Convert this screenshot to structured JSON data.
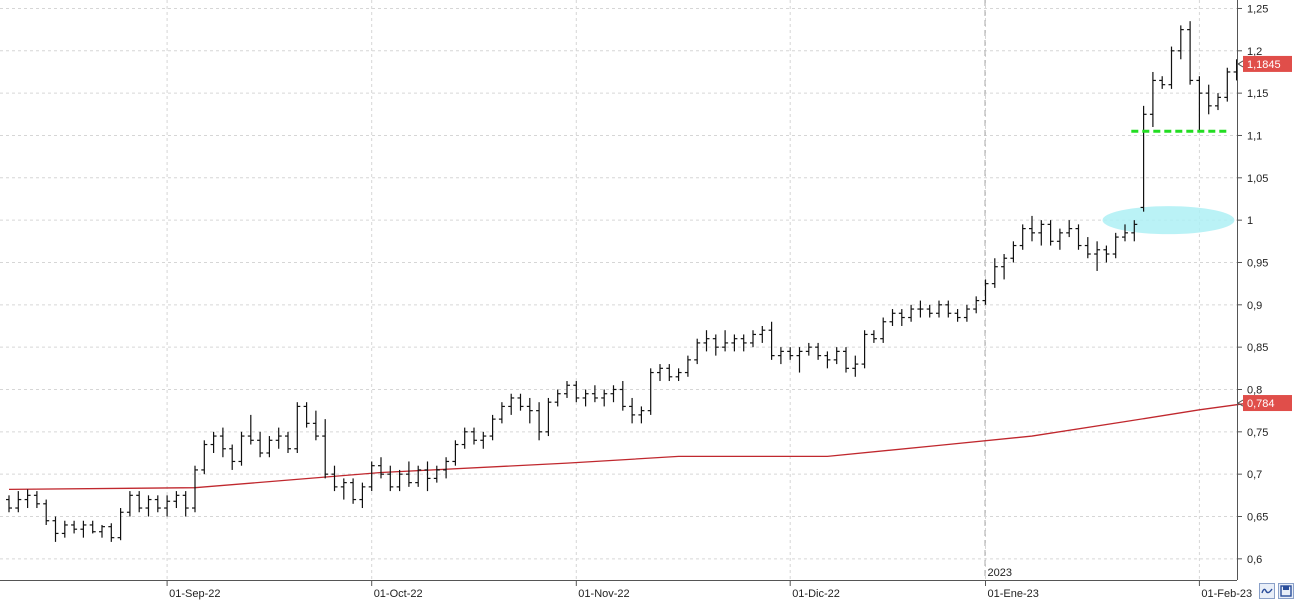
{
  "chart_data": {
    "type": "ohlc",
    "y_axis": {
      "side": "right",
      "min": 0.575,
      "max": 1.26,
      "ticks": [
        {
          "value": 0.6,
          "label": "0,6"
        },
        {
          "value": 0.65,
          "label": "0,65"
        },
        {
          "value": 0.7,
          "label": "0,7"
        },
        {
          "value": 0.75,
          "label": "0,75"
        },
        {
          "value": 0.8,
          "label": "0,8"
        },
        {
          "value": 0.85,
          "label": "0,85"
        },
        {
          "value": 0.9,
          "label": "0,9"
        },
        {
          "value": 0.95,
          "label": "0,95"
        },
        {
          "value": 1.0,
          "label": "1"
        },
        {
          "value": 1.05,
          "label": "1,05"
        },
        {
          "value": 1.1,
          "label": "1,1"
        },
        {
          "value": 1.15,
          "label": "1,15"
        },
        {
          "value": 1.2,
          "label": "1,2"
        },
        {
          "value": 1.25,
          "label": "1,25"
        }
      ]
    },
    "x_axis": {
      "ticks": [
        {
          "bar": 17,
          "label": "01-Sep-22"
        },
        {
          "bar": 39,
          "label": "01-Oct-22"
        },
        {
          "bar": 61,
          "label": "01-Nov-22"
        },
        {
          "bar": 84,
          "label": "01-Dic-22"
        },
        {
          "bar": 105,
          "label": "01-Ene-23"
        },
        {
          "bar": 128,
          "label": "01-Feb-23"
        }
      ],
      "year_marker": {
        "bar": 105,
        "label": "2023"
      }
    },
    "grid": true,
    "ohlc_bars": [
      [
        0.67,
        0.675,
        0.655,
        0.66
      ],
      [
        0.66,
        0.68,
        0.655,
        0.67
      ],
      [
        0.67,
        0.682,
        0.66,
        0.675
      ],
      [
        0.675,
        0.68,
        0.66,
        0.665
      ],
      [
        0.665,
        0.67,
        0.64,
        0.645
      ],
      [
        0.645,
        0.65,
        0.62,
        0.63
      ],
      [
        0.63,
        0.645,
        0.625,
        0.64
      ],
      [
        0.64,
        0.645,
        0.63,
        0.635
      ],
      [
        0.635,
        0.645,
        0.625,
        0.64
      ],
      [
        0.64,
        0.645,
        0.63,
        0.632
      ],
      [
        0.632,
        0.64,
        0.625,
        0.638
      ],
      [
        0.638,
        0.642,
        0.62,
        0.625
      ],
      [
        0.625,
        0.66,
        0.622,
        0.655
      ],
      [
        0.655,
        0.68,
        0.65,
        0.675
      ],
      [
        0.675,
        0.68,
        0.655,
        0.66
      ],
      [
        0.66,
        0.675,
        0.65,
        0.67
      ],
      [
        0.67,
        0.675,
        0.655,
        0.66
      ],
      [
        0.66,
        0.675,
        0.65,
        0.668
      ],
      [
        0.668,
        0.68,
        0.66,
        0.675
      ],
      [
        0.675,
        0.68,
        0.65,
        0.66
      ],
      [
        0.66,
        0.71,
        0.655,
        0.705
      ],
      [
        0.705,
        0.74,
        0.7,
        0.735
      ],
      [
        0.735,
        0.75,
        0.725,
        0.745
      ],
      [
        0.745,
        0.755,
        0.72,
        0.73
      ],
      [
        0.73,
        0.735,
        0.705,
        0.715
      ],
      [
        0.715,
        0.75,
        0.71,
        0.745
      ],
      [
        0.745,
        0.77,
        0.735,
        0.74
      ],
      [
        0.74,
        0.75,
        0.72,
        0.725
      ],
      [
        0.725,
        0.745,
        0.72,
        0.74
      ],
      [
        0.74,
        0.755,
        0.73,
        0.745
      ],
      [
        0.745,
        0.75,
        0.725,
        0.73
      ],
      [
        0.73,
        0.785,
        0.725,
        0.78
      ],
      [
        0.78,
        0.785,
        0.755,
        0.76
      ],
      [
        0.76,
        0.775,
        0.74,
        0.745
      ],
      [
        0.745,
        0.765,
        0.695,
        0.7
      ],
      [
        0.7,
        0.71,
        0.68,
        0.685
      ],
      [
        0.685,
        0.695,
        0.67,
        0.69
      ],
      [
        0.69,
        0.695,
        0.665,
        0.67
      ],
      [
        0.67,
        0.69,
        0.66,
        0.685
      ],
      [
        0.685,
        0.715,
        0.68,
        0.71
      ],
      [
        0.71,
        0.72,
        0.695,
        0.7
      ],
      [
        0.7,
        0.71,
        0.68,
        0.685
      ],
      [
        0.685,
        0.705,
        0.68,
        0.7
      ],
      [
        0.7,
        0.715,
        0.685,
        0.69
      ],
      [
        0.69,
        0.71,
        0.685,
        0.705
      ],
      [
        0.705,
        0.715,
        0.68,
        0.695
      ],
      [
        0.695,
        0.71,
        0.69,
        0.705
      ],
      [
        0.705,
        0.72,
        0.695,
        0.715
      ],
      [
        0.715,
        0.74,
        0.71,
        0.735
      ],
      [
        0.735,
        0.755,
        0.73,
        0.75
      ],
      [
        0.75,
        0.755,
        0.735,
        0.74
      ],
      [
        0.74,
        0.75,
        0.73,
        0.745
      ],
      [
        0.745,
        0.77,
        0.74,
        0.765
      ],
      [
        0.765,
        0.785,
        0.76,
        0.78
      ],
      [
        0.78,
        0.795,
        0.77,
        0.79
      ],
      [
        0.79,
        0.795,
        0.775,
        0.78
      ],
      [
        0.78,
        0.79,
        0.76,
        0.775
      ],
      [
        0.775,
        0.785,
        0.74,
        0.75
      ],
      [
        0.75,
        0.79,
        0.745,
        0.785
      ],
      [
        0.785,
        0.8,
        0.78,
        0.795
      ],
      [
        0.795,
        0.81,
        0.79,
        0.805
      ],
      [
        0.805,
        0.81,
        0.785,
        0.79
      ],
      [
        0.79,
        0.8,
        0.78,
        0.795
      ],
      [
        0.795,
        0.805,
        0.785,
        0.79
      ],
      [
        0.79,
        0.8,
        0.78,
        0.795
      ],
      [
        0.795,
        0.805,
        0.785,
        0.8
      ],
      [
        0.8,
        0.81,
        0.775,
        0.78
      ],
      [
        0.78,
        0.79,
        0.76,
        0.77
      ],
      [
        0.77,
        0.78,
        0.76,
        0.775
      ],
      [
        0.775,
        0.825,
        0.77,
        0.82
      ],
      [
        0.82,
        0.83,
        0.81,
        0.825
      ],
      [
        0.825,
        0.83,
        0.81,
        0.815
      ],
      [
        0.815,
        0.825,
        0.81,
        0.82
      ],
      [
        0.82,
        0.84,
        0.815,
        0.835
      ],
      [
        0.835,
        0.86,
        0.83,
        0.855
      ],
      [
        0.855,
        0.87,
        0.845,
        0.86
      ],
      [
        0.86,
        0.865,
        0.84,
        0.85
      ],
      [
        0.85,
        0.87,
        0.845,
        0.855
      ],
      [
        0.855,
        0.865,
        0.845,
        0.86
      ],
      [
        0.86,
        0.865,
        0.845,
        0.855
      ],
      [
        0.855,
        0.87,
        0.85,
        0.865
      ],
      [
        0.865,
        0.875,
        0.855,
        0.87
      ],
      [
        0.87,
        0.88,
        0.835,
        0.84
      ],
      [
        0.84,
        0.85,
        0.83,
        0.845
      ],
      [
        0.845,
        0.85,
        0.835,
        0.84
      ],
      [
        0.84,
        0.85,
        0.82,
        0.845
      ],
      [
        0.845,
        0.855,
        0.84,
        0.85
      ],
      [
        0.85,
        0.855,
        0.835,
        0.84
      ],
      [
        0.84,
        0.845,
        0.825,
        0.835
      ],
      [
        0.835,
        0.85,
        0.83,
        0.845
      ],
      [
        0.845,
        0.85,
        0.82,
        0.825
      ],
      [
        0.825,
        0.84,
        0.815,
        0.83
      ],
      [
        0.83,
        0.87,
        0.825,
        0.865
      ],
      [
        0.865,
        0.87,
        0.855,
        0.86
      ],
      [
        0.86,
        0.885,
        0.855,
        0.88
      ],
      [
        0.88,
        0.895,
        0.875,
        0.89
      ],
      [
        0.89,
        0.895,
        0.875,
        0.885
      ],
      [
        0.885,
        0.9,
        0.88,
        0.895
      ],
      [
        0.895,
        0.905,
        0.885,
        0.895
      ],
      [
        0.895,
        0.9,
        0.885,
        0.89
      ],
      [
        0.89,
        0.905,
        0.885,
        0.9
      ],
      [
        0.9,
        0.905,
        0.885,
        0.89
      ],
      [
        0.89,
        0.895,
        0.88,
        0.885
      ],
      [
        0.885,
        0.9,
        0.88,
        0.895
      ],
      [
        0.895,
        0.91,
        0.89,
        0.905
      ],
      [
        0.905,
        0.93,
        0.9,
        0.925
      ],
      [
        0.925,
        0.955,
        0.92,
        0.945
      ],
      [
        0.945,
        0.96,
        0.93,
        0.955
      ],
      [
        0.955,
        0.975,
        0.95,
        0.97
      ],
      [
        0.97,
        0.995,
        0.965,
        0.99
      ],
      [
        0.99,
        1.005,
        0.975,
        0.985
      ],
      [
        0.985,
        1.0,
        0.97,
        0.995
      ],
      [
        0.995,
        1.0,
        0.97,
        0.975
      ],
      [
        0.975,
        0.99,
        0.965,
        0.985
      ],
      [
        0.985,
        1.0,
        0.98,
        0.99
      ],
      [
        0.99,
        0.995,
        0.965,
        0.97
      ],
      [
        0.97,
        0.98,
        0.955,
        0.96
      ],
      [
        0.96,
        0.975,
        0.94,
        0.965
      ],
      [
        0.965,
        0.97,
        0.95,
        0.96
      ],
      [
        0.96,
        0.985,
        0.955,
        0.98
      ],
      [
        0.98,
        0.995,
        0.975,
        0.985
      ],
      [
        0.985,
        1.0,
        0.975,
        0.995
      ],
      [
        1.015,
        1.135,
        1.01,
        1.125
      ],
      [
        1.125,
        1.175,
        1.11,
        1.165
      ],
      [
        1.165,
        1.17,
        1.155,
        1.16
      ],
      [
        1.16,
        1.205,
        1.155,
        1.2
      ],
      [
        1.2,
        1.23,
        1.19,
        1.225
      ],
      [
        1.225,
        1.235,
        1.16,
        1.165
      ],
      [
        1.165,
        1.17,
        1.105,
        1.15
      ],
      [
        1.15,
        1.16,
        1.125,
        1.135
      ],
      [
        1.135,
        1.15,
        1.13,
        1.145
      ],
      [
        1.145,
        1.18,
        1.14,
        1.175
      ],
      [
        1.175,
        1.19,
        1.165,
        1.1845
      ]
    ],
    "moving_average": {
      "color": "#c0282e",
      "points": [
        [
          0,
          0.682
        ],
        [
          20,
          0.684
        ],
        [
          40,
          0.702
        ],
        [
          60,
          0.713
        ],
        [
          72,
          0.721
        ],
        [
          88,
          0.721
        ],
        [
          100,
          0.734
        ],
        [
          110,
          0.745
        ],
        [
          120,
          0.762
        ],
        [
          128,
          0.776
        ],
        [
          134,
          0.785
        ]
      ]
    },
    "last_value_badges": [
      {
        "label": "1,1845",
        "value": 1.1845,
        "color": "#e04e4a"
      },
      {
        "label": "0,784",
        "value": 0.784,
        "color": "#e04e4a"
      }
    ],
    "support_line": {
      "value": 1.105,
      "from_bar": 121,
      "to_bar": 134,
      "color": "#22dd22"
    },
    "highlight_ellipse": {
      "bar_center": 125,
      "value": 1.0,
      "color": "#aef0f5"
    }
  },
  "controls": {
    "btn_a_icon": "wave-icon",
    "btn_b_icon": "save-icon"
  }
}
